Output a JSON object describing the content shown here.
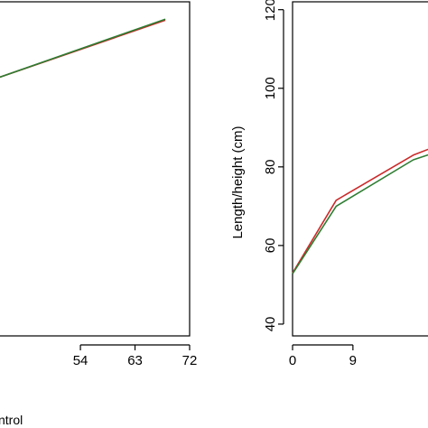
{
  "colors": {
    "series_1": "#cc2a2a",
    "series_2": "#2e7d32",
    "axis": "#000000"
  },
  "legend_fragment": "ntrol",
  "chart_data": [
    {
      "type": "line",
      "title": "",
      "xlabel": "",
      "ylabel": "",
      "x_ticks": [
        54,
        63,
        72
      ],
      "y_ticks": [],
      "xlim": [
        40,
        72
      ],
      "ylim": [
        0,
        100
      ],
      "grid": false,
      "series": [
        {
          "color": "series_1",
          "x": [
            40,
            68
          ],
          "y": [
            77,
            94.5
          ]
        },
        {
          "color": "series_2",
          "x": [
            40,
            68
          ],
          "y": [
            77,
            94.8
          ]
        }
      ]
    },
    {
      "type": "line",
      "title": "",
      "xlabel": "",
      "ylabel": "Length/height (cm)",
      "x_ticks": [
        0,
        9
      ],
      "y_ticks": [
        40,
        60,
        80,
        100,
        120
      ],
      "xlim": [
        0,
        21
      ],
      "ylim": [
        37,
        122
      ],
      "grid": false,
      "series": [
        {
          "color": "series_1",
          "x": [
            0,
            6.5,
            18,
            21
          ],
          "y": [
            53,
            71.5,
            83,
            85
          ]
        },
        {
          "color": "series_2",
          "x": [
            0,
            6.5,
            18,
            21
          ],
          "y": [
            52.8,
            70,
            81.8,
            83.5
          ]
        }
      ]
    }
  ]
}
